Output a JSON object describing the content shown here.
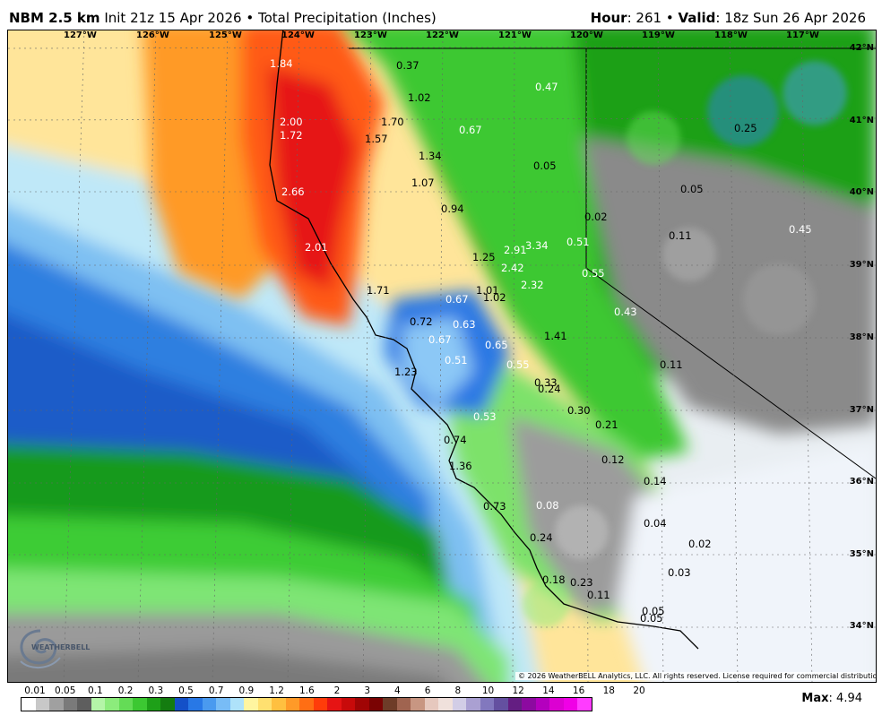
{
  "header": {
    "model": "NBM 2.5 km",
    "init": "Init 21z 15 Apr 2026",
    "bullet": "•",
    "product": "Total Precipitation (Inches)",
    "hour_label": "Hour",
    "hour_value": ": 261",
    "valid_label": "Valid",
    "valid_value": ": 18z Sun 26 Apr 2026"
  },
  "longitude_labels": [
    "127°W",
    "126°W",
    "125°W",
    "124°W",
    "123°W",
    "122°W",
    "121°W",
    "120°W",
    "119°W",
    "118°W",
    "117°W"
  ],
  "latitude_labels": [
    "42°N",
    "41°N",
    "40°N",
    "39°N",
    "38°N",
    "37°N",
    "36°N",
    "35°N",
    "34°N"
  ],
  "precip_values": [
    {
      "text": "1.84",
      "tone": "light"
    },
    {
      "text": "0.37",
      "tone": "dark"
    },
    {
      "text": "0.47",
      "tone": "light"
    },
    {
      "text": "1.02",
      "tone": "dark"
    },
    {
      "text": "2.00",
      "tone": "light"
    },
    {
      "text": "1.72",
      "tone": "light"
    },
    {
      "text": "1.70",
      "tone": "dark"
    },
    {
      "text": "1.57",
      "tone": "dark"
    },
    {
      "text": "0.67",
      "tone": "light"
    },
    {
      "text": "0.25",
      "tone": "dark"
    },
    {
      "text": "1.34",
      "tone": "dark"
    },
    {
      "text": "0.05",
      "tone": "dark"
    },
    {
      "text": "2.66",
      "tone": "light"
    },
    {
      "text": "1.07",
      "tone": "dark"
    },
    {
      "text": "0.05",
      "tone": "dark"
    },
    {
      "text": "0.94",
      "tone": "dark"
    },
    {
      "text": "0.02",
      "tone": "dark"
    },
    {
      "text": "0.11",
      "tone": "dark"
    },
    {
      "text": "0.45",
      "tone": "light"
    },
    {
      "text": "2.01",
      "tone": "light"
    },
    {
      "text": "2.91",
      "tone": "light"
    },
    {
      "text": "3.34",
      "tone": "light"
    },
    {
      "text": "0.51",
      "tone": "light"
    },
    {
      "text": "1.25",
      "tone": "dark"
    },
    {
      "text": "2.42",
      "tone": "light"
    },
    {
      "text": "0.55",
      "tone": "light"
    },
    {
      "text": "2.32",
      "tone": "light"
    },
    {
      "text": "1.71",
      "tone": "dark"
    },
    {
      "text": "1.01",
      "tone": "dark"
    },
    {
      "text": "1.02",
      "tone": "dark"
    },
    {
      "text": "0.67",
      "tone": "light"
    },
    {
      "text": "0.43",
      "tone": "light"
    },
    {
      "text": "0.72",
      "tone": "dark"
    },
    {
      "text": "0.63",
      "tone": "light"
    },
    {
      "text": "1.41",
      "tone": "dark"
    },
    {
      "text": "0.67",
      "tone": "light"
    },
    {
      "text": "0.65",
      "tone": "light"
    },
    {
      "text": "0.51",
      "tone": "light"
    },
    {
      "text": "0.55",
      "tone": "light"
    },
    {
      "text": "0.11",
      "tone": "dark"
    },
    {
      "text": "1.23",
      "tone": "dark"
    },
    {
      "text": "0.33",
      "tone": "dark"
    },
    {
      "text": "0.24",
      "tone": "dark"
    },
    {
      "text": "0.30",
      "tone": "dark"
    },
    {
      "text": "0.53",
      "tone": "light"
    },
    {
      "text": "0.21",
      "tone": "dark"
    },
    {
      "text": "0.74",
      "tone": "dark"
    },
    {
      "text": "1.36",
      "tone": "dark"
    },
    {
      "text": "0.12",
      "tone": "dark"
    },
    {
      "text": "0.14",
      "tone": "dark"
    },
    {
      "text": "0.73",
      "tone": "dark"
    },
    {
      "text": "0.08",
      "tone": "light"
    },
    {
      "text": "0.04",
      "tone": "dark"
    },
    {
      "text": "0.24",
      "tone": "dark"
    },
    {
      "text": "0.02",
      "tone": "dark"
    },
    {
      "text": "0.03",
      "tone": "dark"
    },
    {
      "text": "0.18",
      "tone": "dark"
    },
    {
      "text": "0.23",
      "tone": "dark"
    },
    {
      "text": "0.11",
      "tone": "dark"
    },
    {
      "text": "0.05",
      "tone": "dark"
    },
    {
      "text": "0.05",
      "tone": "dark"
    }
  ],
  "copyright": "© 2026 WeatherBELL Analytics, LLC. All rights reserved. License required for commercial distribution.",
  "logo_text": "WEATHERBELL",
  "legend": {
    "ticks": [
      "0.01",
      "0.05",
      "0.1",
      "0.2",
      "0.3",
      "0.5",
      "0.7",
      "0.9",
      "1.2",
      "1.6",
      "2",
      "3",
      "4",
      "6",
      "8",
      "10",
      "12",
      "14",
      "16",
      "18",
      "20"
    ],
    "colors": [
      "#ffffff",
      "#c8c8c8",
      "#a0a0a0",
      "#7a7a7a",
      "#5e5e5e",
      "#b4f5a8",
      "#8cec7c",
      "#64dc56",
      "#3cc832",
      "#1ea018",
      "#147c10",
      "#1450c8",
      "#2878e6",
      "#4a9aef",
      "#78bcf6",
      "#aee2fa",
      "#fff5a0",
      "#ffe070",
      "#ffc040",
      "#ff9a28",
      "#ff6e14",
      "#ff3c0a",
      "#e61414",
      "#c80a0a",
      "#a00505",
      "#7a0303",
      "#6e3c28",
      "#a06450",
      "#c89682",
      "#e6c8be",
      "#f0e1dc",
      "#d2cde6",
      "#aaa0d2",
      "#8278be",
      "#6450a0",
      "#641e82",
      "#8c0aa0",
      "#b400be",
      "#dc00d2",
      "#f000e6",
      "#ff3cff"
    ]
  },
  "max_label": "Max",
  "max_value": ": 4.94"
}
